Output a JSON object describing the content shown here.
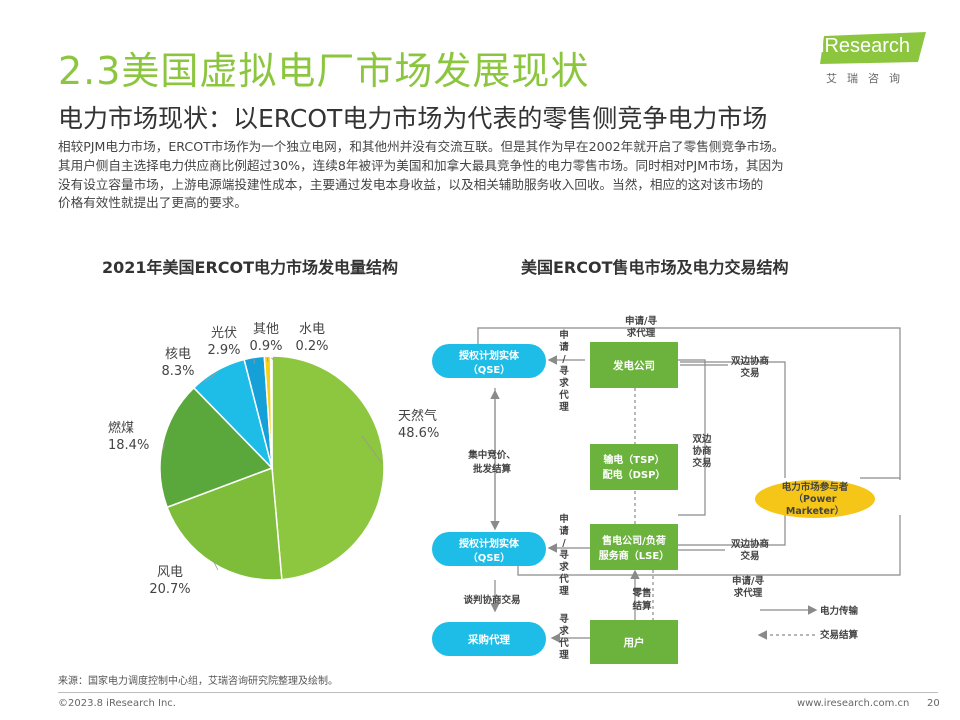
{
  "page": {
    "title": "2.3美国虚拟电厂市场发展现状",
    "subtitle": "电力市场现状：以ERCOT电力市场为代表的零售侧竞争电力市场",
    "intro": [
      "相较PJM电力市场，ERCOT市场作为一个独立电网，和其他州并没有交流互联。但是其作为早在2002年就开启了零售侧竞争市场。",
      "其用户侧自主选择电力供应商比例超过30%，连续8年被评为美国和加拿大最具竞争性的电力零售市场。同时相对PJM市场，其因为",
      "没有设立容量市场，上游电源端投建性成本，主要通过发电本身收益，以及相关辅助服务收入回收。当然，相应的这对该市场的",
      "价格有效性就提出了更高的要求。"
    ],
    "logo": {
      "word": "iResearch",
      "cn": "艾瑞咨询"
    },
    "source": "来源：国家电力调度控制中心组，艾瑞咨询研究院整理及绘制。",
    "footer": {
      "copyright": "©2023.8 iResearch Inc.",
      "url": "www.iresearch.com.cn",
      "page": "20"
    }
  },
  "colors": {
    "title_green": "#8cc63f",
    "slice_gas": "#8dc63f",
    "slice_wind": "#7dbd3a",
    "slice_coal": "#5aa83c",
    "slice_nuclear": "#1ebde8",
    "slice_solar": "#15a0d8",
    "slice_other": "#f4d019",
    "slice_hydro": "#9fc8e8",
    "qse_blue": "#1ebde8",
    "box_green": "#6cb33e",
    "power_marketer_yellow": "#f5c518",
    "line_gray": "#8a8a8a"
  },
  "chart_data": [
    {
      "type": "pie",
      "title": "2021年美国ERCOT电力市场发电量结构",
      "unit": "%",
      "slices": [
        {
          "label": "天然气",
          "value": 48.6,
          "label_text": "48.6%"
        },
        {
          "label": "风电",
          "value": 20.7,
          "label_text": "20.7%"
        },
        {
          "label": "燃煤",
          "value": 18.4,
          "label_text": "18.4%"
        },
        {
          "label": "核电",
          "value": 8.3,
          "label_text": "8.3%"
        },
        {
          "label": "光伏",
          "value": 2.9,
          "label_text": "2.9%"
        },
        {
          "label": "其他",
          "value": 0.9,
          "label_text": "0.9%"
        },
        {
          "label": "水电",
          "value": 0.2,
          "label_text": "0.2%"
        }
      ]
    }
  ],
  "flow": {
    "title": "美国ERCOT售电市场及电力交易结构",
    "nodes": {
      "qse_top": [
        "授权计划实体",
        "（QSE）"
      ],
      "qse_mid": [
        "授权计划实体",
        "（QSE）"
      ],
      "purchase_agent": "采购代理",
      "generator": "发电公司",
      "tsp_dsp": [
        "输电（TSP）",
        "配电（DSP）"
      ],
      "lse": [
        "售电公司/负荷",
        "服务商（LSE）"
      ],
      "user": "用户",
      "power_marketer": [
        "电力市场参与者",
        "（Power",
        "Marketer）"
      ]
    },
    "labels": {
      "apply_agent_top": [
        "申请/寻",
        "求代理"
      ],
      "apply_vertical_1": [
        "申",
        "请",
        "/",
        "寻",
        "求",
        "代",
        "理"
      ],
      "apply_vertical_2": [
        "申",
        "请",
        "/",
        "寻",
        "求",
        "代",
        "理"
      ],
      "seek_vertical": [
        "寻",
        "求",
        "代",
        "理"
      ],
      "central_bidding": [
        "集中竞价、",
        "批发结算"
      ],
      "bilateral_1": [
        "双边协商",
        "交易"
      ],
      "bilateral_vertical": [
        "双边",
        "协商",
        "交易"
      ],
      "bilateral_2": [
        "双边协商",
        "交易"
      ],
      "apply_agent_right": [
        "申请/寻",
        "求代理"
      ],
      "retail_settle": [
        "零售",
        "结算"
      ],
      "negotiation": "谈判协商交易",
      "legend_power": "电力传输",
      "legend_trade": "交易结算"
    }
  }
}
